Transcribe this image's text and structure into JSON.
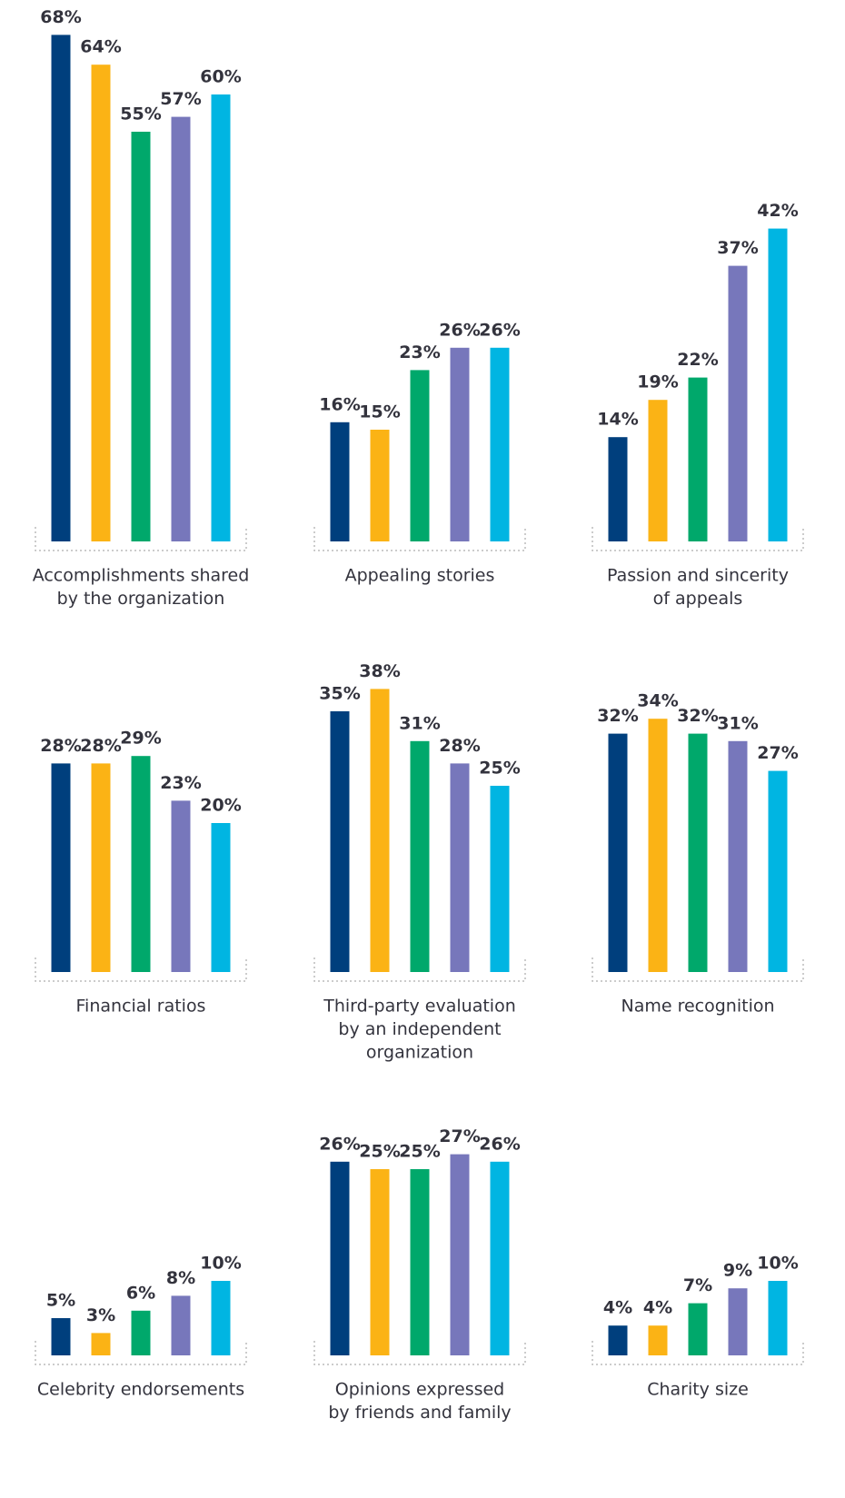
{
  "chart_data": [
    {
      "type": "bar",
      "title": [
        "Accomplishments shared",
        "by the organization"
      ],
      "values": [
        68,
        64,
        55,
        57,
        60
      ],
      "value_labels": [
        "68%",
        "64%",
        "55%",
        "57%",
        "60%"
      ],
      "colors": [
        "#003f7d",
        "#fbb315",
        "#00a86b",
        "#7777bb",
        "#00b5e2"
      ]
    },
    {
      "type": "bar",
      "title": [
        "Appealing stories"
      ],
      "values": [
        16,
        15,
        23,
        26,
        26
      ],
      "value_labels": [
        "16%",
        "15%",
        "23%",
        "26%",
        "26%"
      ],
      "colors": [
        "#003f7d",
        "#fbb315",
        "#00a86b",
        "#7777bb",
        "#00b5e2"
      ]
    },
    {
      "type": "bar",
      "title": [
        "Passion and sincerity",
        "of appeals"
      ],
      "values": [
        14,
        19,
        22,
        37,
        42
      ],
      "value_labels": [
        "14%",
        "19%",
        "22%",
        "37%",
        "42%"
      ],
      "colors": [
        "#003f7d",
        "#fbb315",
        "#00a86b",
        "#7777bb",
        "#00b5e2"
      ]
    },
    {
      "type": "bar",
      "title": [
        "Financial ratios"
      ],
      "values": [
        28,
        28,
        29,
        23,
        20
      ],
      "value_labels": [
        "28%",
        "28%",
        "29%",
        "23%",
        "20%"
      ],
      "colors": [
        "#003f7d",
        "#fbb315",
        "#00a86b",
        "#7777bb",
        "#00b5e2"
      ]
    },
    {
      "type": "bar",
      "title": [
        "Third-party evaluation",
        "by an independent",
        "organization"
      ],
      "values": [
        35,
        38,
        31,
        28,
        25
      ],
      "value_labels": [
        "35%",
        "38%",
        "31%",
        "28%",
        "25%"
      ],
      "colors": [
        "#003f7d",
        "#fbb315",
        "#00a86b",
        "#7777bb",
        "#00b5e2"
      ]
    },
    {
      "type": "bar",
      "title": [
        "Name recognition"
      ],
      "values": [
        32,
        34,
        32,
        31,
        27
      ],
      "value_labels": [
        "32%",
        "34%",
        "32%",
        "31%",
        "27%"
      ],
      "colors": [
        "#003f7d",
        "#fbb315",
        "#00a86b",
        "#7777bb",
        "#00b5e2"
      ]
    },
    {
      "type": "bar",
      "title": [
        "Celebrity endorsements"
      ],
      "values": [
        5,
        3,
        6,
        8,
        10
      ],
      "value_labels": [
        "5%",
        "3%",
        "6%",
        "8%",
        "10%"
      ],
      "colors": [
        "#003f7d",
        "#fbb315",
        "#00a86b",
        "#7777bb",
        "#00b5e2"
      ]
    },
    {
      "type": "bar",
      "title": [
        "Opinions expressed",
        "by friends and family"
      ],
      "values": [
        26,
        25,
        25,
        27,
        26
      ],
      "value_labels": [
        "26%",
        "25%",
        "25%",
        "27%",
        "26%"
      ],
      "colors": [
        "#003f7d",
        "#fbb315",
        "#00a86b",
        "#7777bb",
        "#00b5e2"
      ]
    },
    {
      "type": "bar",
      "title": [
        "Charity size"
      ],
      "values": [
        4,
        4,
        7,
        9,
        10
      ],
      "value_labels": [
        "4%",
        "4%",
        "7%",
        "9%",
        "10%"
      ],
      "colors": [
        "#003f7d",
        "#fbb315",
        "#00a86b",
        "#7777bb",
        "#00b5e2"
      ]
    }
  ]
}
